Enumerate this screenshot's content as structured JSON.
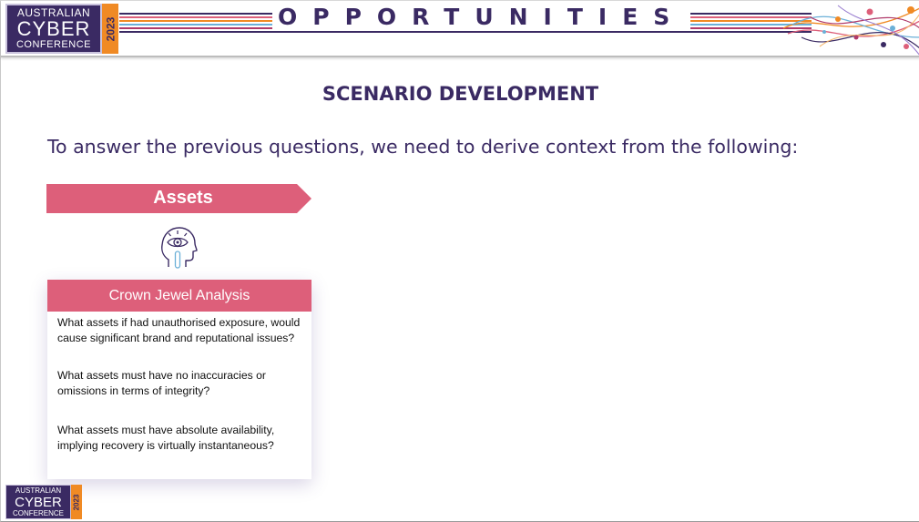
{
  "banner": {
    "title": "OPPORTUNITIES",
    "stripe_colors": [
      "#3a2a63",
      "#dd5f7a",
      "#f08a24",
      "#6bb0d8",
      "#b03a6a"
    ]
  },
  "logo": {
    "line1": "AUSTRALIAN",
    "line2": "CYBER",
    "line3": "CONFERENCE",
    "year": "2023",
    "colors": {
      "primary": "#3a2a63",
      "accent": "#f08a24"
    }
  },
  "slide": {
    "title": "SCENARIO DEVELOPMENT",
    "subtitle": "To answer the previous questions, we need to derive context from the following:"
  },
  "assets": {
    "label": "Assets",
    "icon": "head-eye-icon",
    "accent_color": "#dd5f7a"
  },
  "card": {
    "header": "Crown Jewel Analysis",
    "questions": [
      "What assets if had unauthorised exposure, would cause significant brand and reputational issues?",
      "What assets must have no inaccuracies or omissions in terms of integrity?",
      "What assets must have absolute availability, implying recovery is virtually instantaneous?"
    ]
  }
}
